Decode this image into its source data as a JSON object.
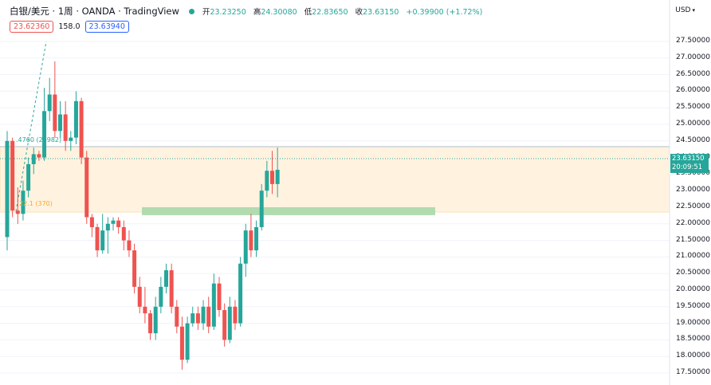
{
  "header": {
    "symbol": "白银/美元 · 1周 · OANDA · TradingView",
    "ohlc": {
      "open_label": "开",
      "open": "23.23250",
      "high_label": "高",
      "high": "24.30080",
      "low_label": "低",
      "low": "22.83650",
      "close_label": "收",
      "close": "23.63150",
      "change": "+0.39900 (+1.72%)"
    }
  },
  "trade": {
    "sell": "23.62360",
    "spread": "158.0",
    "buy": "23.63940"
  },
  "currency": {
    "label": "USD",
    "caret": "▾"
  },
  "price_tag": {
    "price": "23.63150",
    "countdown": "20:09:51"
  },
  "fib_labels": {
    "upper": ".4760 (25982)",
    "lower": "22.1 (370)"
  },
  "colors": {
    "up": "#26a69a",
    "down": "#ef5350",
    "zone": "#fff3e0",
    "green_zone": "#a5d6a7"
  },
  "chart_data": {
    "type": "candlestick",
    "y_axis_labels": [
      "27.50000",
      "27.00000",
      "26.50000",
      "26.00000",
      "25.50000",
      "25.00000",
      "24.50000",
      "24.00000",
      "23.50000",
      "23.00000",
      "22.50000",
      "22.00000",
      "21.50000",
      "21.00000",
      "20.50000",
      "20.00000",
      "19.50000",
      "19.00000",
      "18.50000",
      "18.00000",
      "17.50000"
    ],
    "ylim": [
      17.3,
      27.7
    ],
    "zones": [
      {
        "name": "resistance-zone",
        "from": 22.12,
        "to": 23.98,
        "x_start": 0,
        "x_end": 130
      },
      {
        "name": "support-zone",
        "from": 22.04,
        "to": 22.2,
        "x_start": 23,
        "x_end": 80
      }
    ],
    "candles": [
      {
        "o": 21.6,
        "h": 24.8,
        "l": 21.2,
        "c": 24.5
      },
      {
        "o": 24.5,
        "h": 24.6,
        "l": 22.2,
        "c": 22.4
      },
      {
        "o": 22.4,
        "h": 23.1,
        "l": 22.0,
        "c": 22.3
      },
      {
        "o": 22.3,
        "h": 23.3,
        "l": 22.1,
        "c": 23.0
      },
      {
        "o": 23.0,
        "h": 24.0,
        "l": 22.8,
        "c": 23.8
      },
      {
        "o": 23.8,
        "h": 24.3,
        "l": 23.5,
        "c": 24.1
      },
      {
        "o": 24.1,
        "h": 24.2,
        "l": 23.9,
        "c": 24.0
      },
      {
        "o": 24.0,
        "h": 26.1,
        "l": 23.9,
        "c": 25.4
      },
      {
        "o": 25.4,
        "h": 26.4,
        "l": 25.1,
        "c": 25.9
      },
      {
        "o": 25.9,
        "h": 26.9,
        "l": 24.6,
        "c": 24.8
      },
      {
        "o": 24.8,
        "h": 25.7,
        "l": 24.6,
        "c": 25.3
      },
      {
        "o": 25.3,
        "h": 25.7,
        "l": 24.2,
        "c": 24.5
      },
      {
        "o": 24.5,
        "h": 24.8,
        "l": 24.2,
        "c": 24.6
      },
      {
        "o": 24.6,
        "h": 26.0,
        "l": 24.4,
        "c": 25.7
      },
      {
        "o": 25.7,
        "h": 25.8,
        "l": 23.8,
        "c": 24.0
      },
      {
        "o": 24.0,
        "h": 24.2,
        "l": 22.0,
        "c": 22.2
      },
      {
        "o": 22.2,
        "h": 22.3,
        "l": 21.6,
        "c": 21.9
      },
      {
        "o": 21.9,
        "h": 22.0,
        "l": 21.0,
        "c": 21.2
      },
      {
        "o": 21.2,
        "h": 22.3,
        "l": 21.1,
        "c": 21.8
      },
      {
        "o": 21.8,
        "h": 22.2,
        "l": 21.1,
        "c": 22.0
      },
      {
        "o": 22.0,
        "h": 22.2,
        "l": 21.8,
        "c": 22.1
      },
      {
        "o": 22.1,
        "h": 22.2,
        "l": 21.7,
        "c": 21.9
      },
      {
        "o": 21.9,
        "h": 22.1,
        "l": 21.2,
        "c": 21.5
      },
      {
        "o": 21.5,
        "h": 21.8,
        "l": 21.0,
        "c": 21.2
      },
      {
        "o": 21.2,
        "h": 21.4,
        "l": 19.9,
        "c": 20.1
      },
      {
        "o": 20.1,
        "h": 20.4,
        "l": 19.3,
        "c": 19.5
      },
      {
        "o": 19.5,
        "h": 20.1,
        "l": 19.0,
        "c": 19.3
      },
      {
        "o": 19.3,
        "h": 19.4,
        "l": 18.5,
        "c": 18.7
      },
      {
        "o": 18.7,
        "h": 19.8,
        "l": 18.5,
        "c": 19.5
      },
      {
        "o": 19.5,
        "h": 20.4,
        "l": 19.3,
        "c": 20.1
      },
      {
        "o": 20.1,
        "h": 20.8,
        "l": 19.9,
        "c": 20.6
      },
      {
        "o": 20.6,
        "h": 20.8,
        "l": 19.3,
        "c": 19.5
      },
      {
        "o": 19.5,
        "h": 19.7,
        "l": 18.7,
        "c": 18.9
      },
      {
        "o": 18.9,
        "h": 19.2,
        "l": 17.6,
        "c": 17.9
      },
      {
        "o": 17.9,
        "h": 19.2,
        "l": 17.8,
        "c": 19.0
      },
      {
        "o": 19.0,
        "h": 19.5,
        "l": 18.9,
        "c": 19.3
      },
      {
        "o": 19.3,
        "h": 19.5,
        "l": 18.8,
        "c": 19.0
      },
      {
        "o": 19.0,
        "h": 19.7,
        "l": 18.8,
        "c": 19.5
      },
      {
        "o": 19.5,
        "h": 19.8,
        "l": 18.7,
        "c": 18.9
      },
      {
        "o": 18.9,
        "h": 20.5,
        "l": 18.8,
        "c": 20.2
      },
      {
        "o": 20.2,
        "h": 20.4,
        "l": 19.2,
        "c": 19.4
      },
      {
        "o": 19.4,
        "h": 19.6,
        "l": 18.3,
        "c": 18.5
      },
      {
        "o": 18.5,
        "h": 19.8,
        "l": 18.4,
        "c": 19.5
      },
      {
        "o": 19.5,
        "h": 19.7,
        "l": 18.8,
        "c": 19.0
      },
      {
        "o": 19.0,
        "h": 21.0,
        "l": 18.9,
        "c": 20.8
      },
      {
        "o": 20.8,
        "h": 22.0,
        "l": 20.4,
        "c": 21.8
      },
      {
        "o": 21.8,
        "h": 22.3,
        "l": 21.0,
        "c": 21.2
      },
      {
        "o": 21.2,
        "h": 22.1,
        "l": 21.0,
        "c": 21.9
      },
      {
        "o": 21.9,
        "h": 23.2,
        "l": 21.8,
        "c": 23.0
      },
      {
        "o": 23.0,
        "h": 23.9,
        "l": 22.8,
        "c": 23.6
      },
      {
        "o": 23.6,
        "h": 24.2,
        "l": 22.9,
        "c": 23.2
      },
      {
        "o": 23.2,
        "h": 24.3,
        "l": 22.8,
        "c": 23.63
      }
    ]
  }
}
